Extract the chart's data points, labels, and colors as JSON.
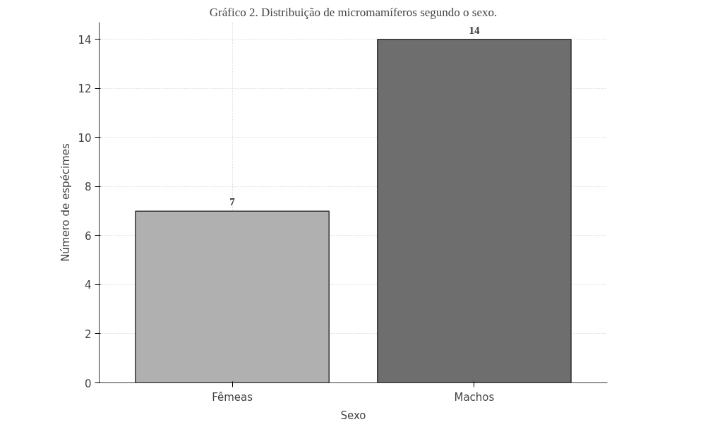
{
  "chart_data": {
    "type": "bar",
    "title": "Gráfico 2. Distribuição de micromamíferos segundo o sexo.",
    "xlabel": "Sexo",
    "ylabel": "Número de espécimes",
    "categories": [
      "Fêmeas",
      "Machos"
    ],
    "values": [
      7,
      14
    ],
    "colors": [
      "#b0b0b0",
      "#6e6e6e"
    ],
    "ylim": [
      0,
      14.7
    ],
    "yticks": [
      0,
      2,
      4,
      6,
      8,
      10,
      12,
      14
    ],
    "grid": true,
    "data_labels": true
  }
}
